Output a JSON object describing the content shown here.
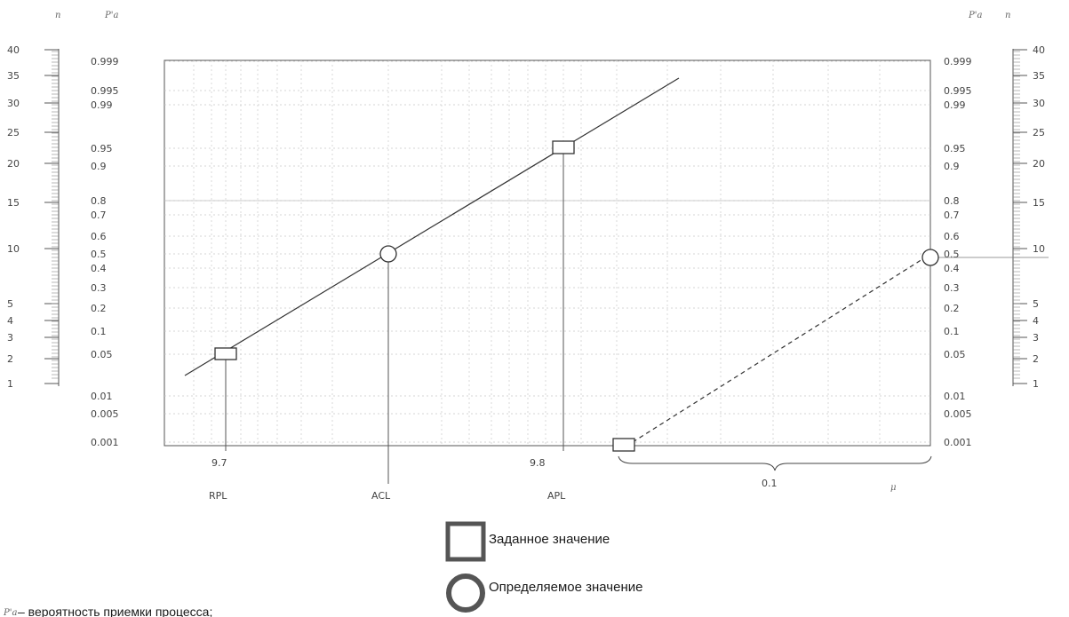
{
  "headers": {
    "left_n": "n",
    "left_pa": "P'a",
    "right_pa": "P'a",
    "right_n": "n"
  },
  "n_scale": {
    "labels": [
      "40",
      "35",
      "30",
      "25",
      "20",
      "15",
      "10",
      "5",
      "4",
      "3",
      "2",
      "1"
    ],
    "right_labels": [
      "40",
      "35",
      "30",
      "25",
      "20",
      "15",
      "10",
      "5",
      "4",
      "3",
      "2",
      "1"
    ]
  },
  "prob_scale": {
    "labels": [
      "0.999",
      "0.995",
      "0.99",
      "0.95",
      "0.9",
      "0.8",
      "0.7",
      "0.6",
      "0.5",
      "0.4",
      "0.3",
      "0.2",
      "0.1",
      "0.05",
      "0.01",
      "0.005",
      "0.001"
    ]
  },
  "x_ticks": {
    "v1": "9.7",
    "v2": "9.8",
    "v3": "0.1",
    "mu": "μ"
  },
  "x_names": {
    "rpl": "RPL",
    "acl": "ACL",
    "apl": "APL"
  },
  "legend": {
    "given": "Заданное значение",
    "determined": "Определяемое значение"
  },
  "footnote": "– вероятность приемки процесса;",
  "footnote_symbol": "P'a",
  "icons": {
    "given": "square-marker",
    "determined": "circle-marker"
  }
}
